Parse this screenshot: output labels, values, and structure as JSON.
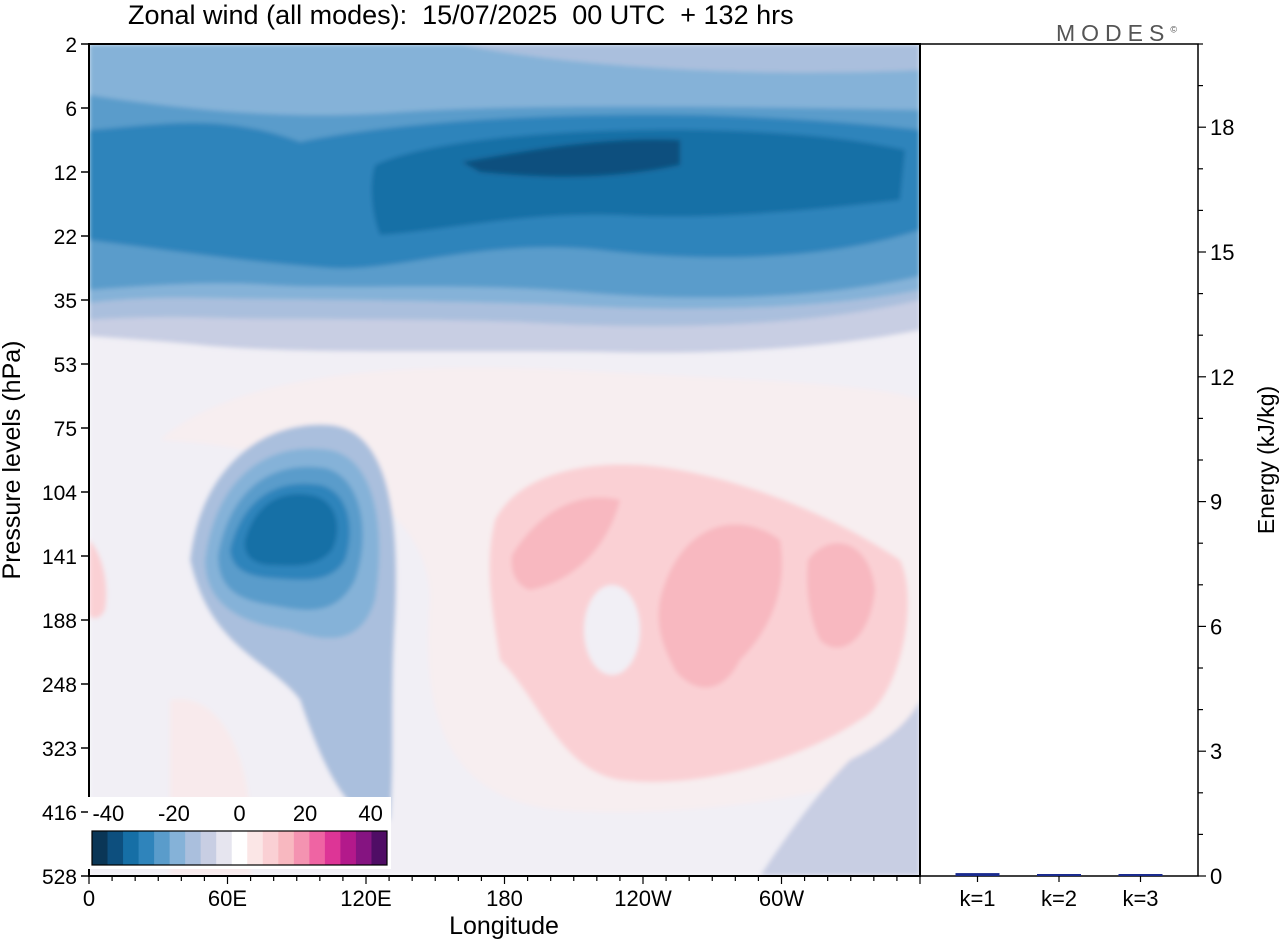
{
  "title": "Zonal wind (all modes):  15/07/2025  00 UTC  + 132 hrs",
  "logo_text": "MODES",
  "logo_mark": "©",
  "chart_data": [
    {
      "type": "heatmap",
      "title": "Zonal wind (all modes):  15/07/2025  00 UTC  + 132 hrs",
      "xlabel": "Longitude",
      "ylabel": "Pressure levels (hPa)",
      "x_ticks": [
        "0",
        "60E",
        "120E",
        "180",
        "120W",
        "60W"
      ],
      "x_tick_degrees": [
        0,
        60,
        120,
        180,
        240,
        300
      ],
      "xlim": [
        0,
        360
      ],
      "y_ticks": [
        "2",
        "6",
        "12",
        "22",
        "35",
        "53",
        "75",
        "104",
        "141",
        "188",
        "248",
        "323",
        "416",
        "528"
      ],
      "y_axis": "pressure levels, top to bottom",
      "colorbar": {
        "tick_labels": [
          "-40",
          "-20",
          "0",
          "20",
          "40"
        ],
        "tick_values": [
          -40,
          -20,
          0,
          20,
          40
        ],
        "range": [
          -45,
          45
        ],
        "colors": [
          "#0a3656",
          "#0d4f7e",
          "#166fa6",
          "#2f84bb",
          "#5a9ccb",
          "#85b2d8",
          "#aabfdd",
          "#c8cee3",
          "#e6e5ef",
          "#ffffff",
          "#fbe6e6",
          "#fad0d4",
          "#f8b8c0",
          "#f493b1",
          "#ef64a3",
          "#dd3596",
          "#b3198b",
          "#851481",
          "#4f0d65"
        ]
      },
      "features": [
        {
          "name": "stratospheric easterly band",
          "lon": [
            0,
            360
          ],
          "levels": "6-35 hPa",
          "value": -30
        },
        {
          "name": "easterly core",
          "lon": [
            130,
            290
          ],
          "levels": "10-20 hPa",
          "value": -40
        },
        {
          "name": "easterly jet",
          "lon": [
            60,
            110
          ],
          "levels": "104-188 hPa",
          "value": -35
        },
        {
          "name": "westerly region",
          "lon": [
            180,
            345
          ],
          "levels": "104-323 hPa",
          "value": 15
        }
      ]
    },
    {
      "type": "bar",
      "categories": [
        "k=1",
        "k=2",
        "k=3"
      ],
      "values": [
        0.07,
        0.03,
        0.02
      ],
      "ylabel": "Energy (kJ/kg)",
      "ylim": [
        0,
        20
      ],
      "y_ticks": [
        "0",
        "3",
        "6",
        "9",
        "12",
        "15",
        "18"
      ],
      "y_tick_values": [
        0,
        3,
        6,
        9,
        12,
        15,
        18
      ],
      "bar_color": "#1a2b8f"
    }
  ]
}
